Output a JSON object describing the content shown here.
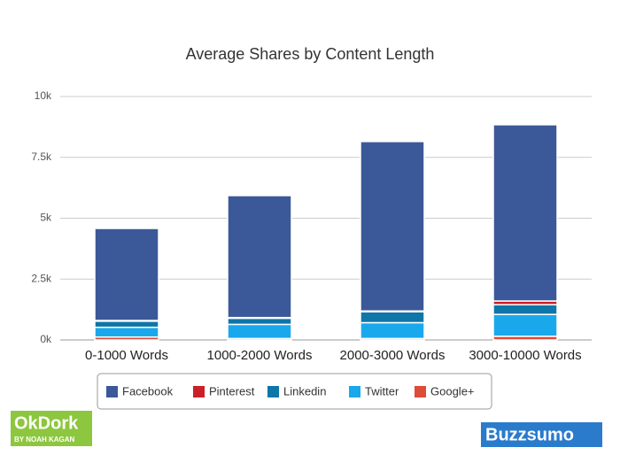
{
  "chart_data": {
    "type": "stacked-bar",
    "title": "Average Shares by Content Length",
    "categories": [
      "0-1000 Words",
      "1000-2000 Words",
      "2000-3000 Words",
      "3000-10000 Words"
    ],
    "series": [
      {
        "name": "Facebook",
        "color": "#3b5998",
        "values": [
          3780,
          5010,
          6960,
          7240
        ]
      },
      {
        "name": "Pinterest",
        "color": "#cb2027",
        "values": [
          30,
          30,
          30,
          150
        ]
      },
      {
        "name": "Linkedin",
        "color": "#0e76a8",
        "values": [
          250,
          250,
          450,
          400
        ]
      },
      {
        "name": "Twitter",
        "color": "#1aa8ec",
        "values": [
          400,
          580,
          650,
          900
        ]
      },
      {
        "name": "Google+",
        "color": "#dd4b39",
        "values": [
          120,
          60,
          60,
          150
        ]
      }
    ],
    "ylim": [
      0,
      10000
    ],
    "yticks": [
      {
        "value": 0,
        "label": "0k"
      },
      {
        "value": 2500,
        "label": "2.5k"
      },
      {
        "value": 5000,
        "label": "5k"
      },
      {
        "value": 7500,
        "label": "7.5k"
      },
      {
        "value": 10000,
        "label": "10k"
      }
    ],
    "grid": true
  },
  "logos": {
    "left": "OkDork",
    "left_sub": "BY NOAH KAGAN",
    "right": "Buzzsumo"
  }
}
